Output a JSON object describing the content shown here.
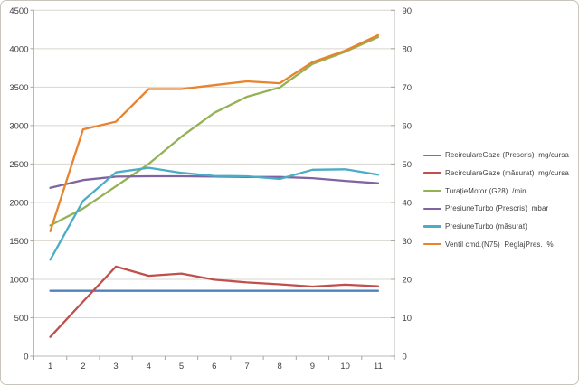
{
  "chart_data": {
    "type": "line",
    "title": "",
    "grid": true,
    "legend_position": "right",
    "x_axis": {
      "labels": [
        "1",
        "2",
        "3",
        "4",
        "5",
        "6",
        "7",
        "8",
        "9",
        "10",
        "11"
      ]
    },
    "left_axis": {
      "min": 0,
      "max": 4500,
      "step": 500,
      "labels": [
        "0",
        "500",
        "1000",
        "1500",
        "2000",
        "2500",
        "3000",
        "3500",
        "4000",
        "4500"
      ]
    },
    "right_axis": {
      "min": 0,
      "max": 90,
      "step": 10,
      "labels": [
        "0",
        "10",
        "20",
        "30",
        "40",
        "50",
        "60",
        "70",
        "80",
        "90"
      ]
    },
    "series": [
      {
        "id": "recirculare-gaze-prescris",
        "name": "RecirculareGaze (Prescris)  mg/cursa",
        "color": "#4f81bd",
        "axis": "left",
        "values": [
          850,
          850,
          850,
          850,
          850,
          850,
          850,
          850,
          850,
          850,
          850
        ]
      },
      {
        "id": "recirculare-gaze-masurat",
        "name": "RecirculareGaze (măsurat)  mg/cursa",
        "color": "#c0504d",
        "axis": "left",
        "values": [
          250,
          710,
          1165,
          1045,
          1075,
          995,
          960,
          935,
          905,
          930,
          910
        ]
      },
      {
        "id": "turatie-motor-g28",
        "name": "TurațieMotor (G28)  /min",
        "color": "#94b254",
        "axis": "left",
        "values": [
          1700,
          1920,
          2210,
          2500,
          2855,
          3165,
          3375,
          3495,
          3800,
          3960,
          4150
        ]
      },
      {
        "id": "presiune-turbo-prescris",
        "name": "PresiuneTurbo (Prescris)  mbar",
        "color": "#8064a2",
        "axis": "left",
        "values": [
          2190,
          2290,
          2335,
          2340,
          2340,
          2335,
          2330,
          2330,
          2315,
          2280,
          2250
        ]
      },
      {
        "id": "presiune-turbo-masurat",
        "name": "PresiuneTurbo (măsurat)",
        "color": "#4bacc6",
        "axis": "left",
        "values": [
          1255,
          2020,
          2390,
          2450,
          2385,
          2345,
          2340,
          2305,
          2425,
          2430,
          2360
        ]
      },
      {
        "id": "ventil-cmd-n75",
        "name": "Ventil cmd.(N75)  ReglajPres.  %",
        "color": "#e8832e",
        "axis": "right",
        "values": [
          32.5,
          59,
          61,
          69.5,
          69.5,
          70.5,
          71.5,
          71,
          76.5,
          79.5,
          83.5
        ]
      }
    ],
    "style": {
      "gridline_color": "#d9d5ce",
      "axis_line_color": "#bdb9b1",
      "tick_color": "#a8a49c",
      "axis_label_color": "#3f3f3f",
      "legend_text_color": "#3f3f3f"
    }
  }
}
